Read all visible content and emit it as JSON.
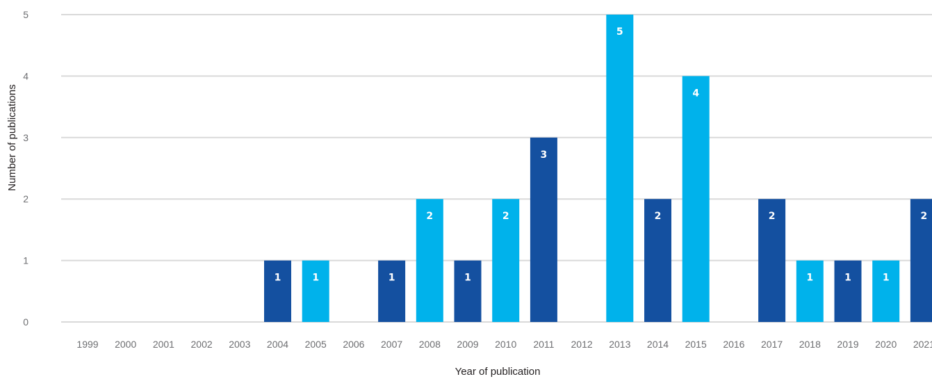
{
  "chart_data": {
    "type": "bar",
    "title": "",
    "xlabel": "Year of publication",
    "ylabel": "Number of publications",
    "ylim": [
      0,
      5
    ],
    "yticks": [
      0,
      1,
      2,
      3,
      4,
      5
    ],
    "grid": "horizontal",
    "legend": "none",
    "categories": [
      "1999",
      "2000",
      "2001",
      "2002",
      "2003",
      "2004",
      "2005",
      "2006",
      "2007",
      "2008",
      "2009",
      "2010",
      "2011",
      "2012",
      "2013",
      "2014",
      "2015",
      "2016",
      "2017",
      "2018",
      "2019",
      "2020",
      "2021"
    ],
    "values": [
      0,
      0,
      0,
      0,
      0,
      1,
      1,
      0,
      1,
      2,
      1,
      2,
      3,
      0,
      5,
      2,
      4,
      0,
      2,
      1,
      1,
      1,
      2
    ],
    "bar_colors": [
      "#00b2eb",
      "#00b2eb",
      "#00b2eb",
      "#00b2eb",
      "#00b2eb",
      "#1450a0",
      "#00b2eb",
      "#00b2eb",
      "#1450a0",
      "#00b2eb",
      "#1450a0",
      "#00b2eb",
      "#1450a0",
      "#00b2eb",
      "#00b2eb",
      "#1450a0",
      "#00b2eb",
      "#00b2eb",
      "#1450a0",
      "#00b2eb",
      "#1450a0",
      "#00b2eb",
      "#1450a0"
    ],
    "colors": {
      "dark_blue": "#1450a0",
      "light_blue": "#00b2eb",
      "gridline": "#d9d9d9",
      "tick_text": "#6d6e71",
      "title_text": "#231f20",
      "data_label": "#ffffff"
    }
  }
}
